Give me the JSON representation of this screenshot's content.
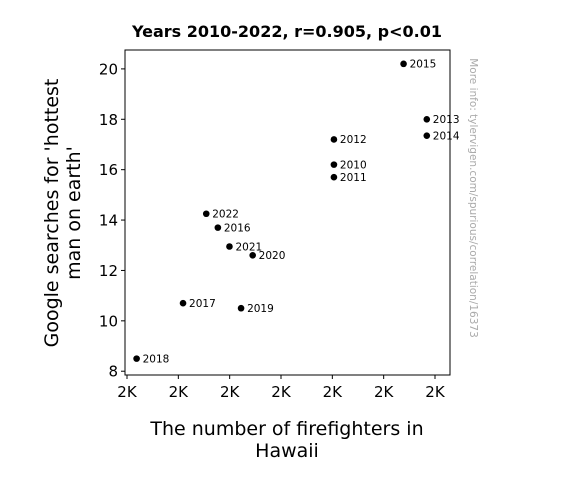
{
  "chart_data": {
    "type": "scatter",
    "title": "Years 2010-2022, r=0.905, p<0.01",
    "xlabel": [
      "The number of firefighters in",
      "Hawaii"
    ],
    "ylabel": [
      "Google searches for 'hottest",
      "man on earth'"
    ],
    "watermark": "More info: tylervigen.com/spurious/correlation/16373",
    "x_tick_labels": [
      "2K",
      "2K",
      "2K",
      "2K",
      "2K",
      "2K",
      "2K"
    ],
    "xlim": [
      1650,
      1930
    ],
    "ylim": [
      7.85,
      20.75
    ],
    "y_ticks": [
      8,
      10,
      12,
      14,
      16,
      18,
      20
    ],
    "marker_color": "#000000",
    "points": [
      {
        "label": "2010",
        "x": 1830,
        "y": 16.2
      },
      {
        "label": "2011",
        "x": 1830,
        "y": 15.7
      },
      {
        "label": "2012",
        "x": 1830,
        "y": 17.2
      },
      {
        "label": "2013",
        "x": 1910,
        "y": 18.0
      },
      {
        "label": "2014",
        "x": 1910,
        "y": 17.35
      },
      {
        "label": "2015",
        "x": 1890,
        "y": 20.2
      },
      {
        "label": "2016",
        "x": 1730,
        "y": 13.7
      },
      {
        "label": "2017",
        "x": 1700,
        "y": 10.7
      },
      {
        "label": "2018",
        "x": 1660,
        "y": 8.5
      },
      {
        "label": "2019",
        "x": 1750,
        "y": 10.5
      },
      {
        "label": "2020",
        "x": 1760,
        "y": 12.6
      },
      {
        "label": "2021",
        "x": 1740,
        "y": 12.95
      },
      {
        "label": "2022",
        "x": 1720,
        "y": 14.25
      }
    ]
  }
}
